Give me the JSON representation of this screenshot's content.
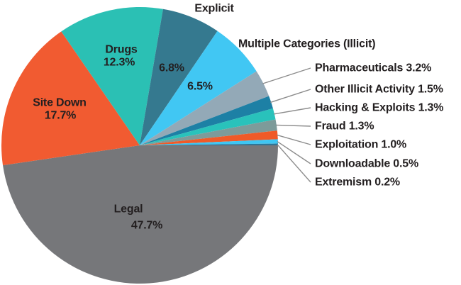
{
  "chart_data": {
    "type": "pie",
    "title": "",
    "start_angle_deg": 90,
    "direction": "clockwise",
    "background": "#ffffff",
    "text_color": "#231f20",
    "leader_line_color": "#8c8c8c",
    "legend_position": "none",
    "slices": [
      {
        "name": "Legal",
        "value": 47.7,
        "display": "47.7%",
        "color": "#76777a",
        "label_mode": "inside",
        "lines": [
          "Legal",
          "47.7%"
        ]
      },
      {
        "name": "Site Down",
        "value": 17.7,
        "display": "17.7%",
        "color": "#f15b31",
        "label_mode": "inside",
        "lines": [
          "Site Down",
          "17.7%"
        ]
      },
      {
        "name": "Drugs",
        "value": 12.3,
        "display": "12.3%",
        "color": "#2bc0b4",
        "label_mode": "inside",
        "lines": [
          "Drugs",
          "12.3%"
        ]
      },
      {
        "name": "Explicit",
        "value": 6.8,
        "display": "6.8%",
        "color": "#35798f",
        "label_mode": "inside-value-outside-title",
        "inside_value": "6.8%",
        "title": "Explicit"
      },
      {
        "name": "Multiple Categories (Illicit)",
        "value": 6.5,
        "display": "6.5%",
        "color": "#41c7f3",
        "label_mode": "inside-value-outside-title",
        "inside_value": "6.5%",
        "title": "Multiple Categories (Illicit)"
      },
      {
        "name": "Pharmaceuticals",
        "value": 3.2,
        "display": "3.2%",
        "color": "#93a9b7",
        "label_mode": "callout",
        "callout_text": "Pharmaceuticals 3.2%"
      },
      {
        "name": "Other Illicit Activity",
        "value": 1.5,
        "display": "1.5%",
        "color": "#1d80a5",
        "label_mode": "callout",
        "callout_text": "Other Illicit Activity 1.5%"
      },
      {
        "name": "Hacking & Exploits",
        "value": 1.3,
        "display": "1.3%",
        "color": "#29c2bb",
        "label_mode": "callout",
        "callout_text": "Hacking & Exploits 1.3%"
      },
      {
        "name": "Fraud",
        "value": 1.3,
        "display": "1.3%",
        "color": "#7d9b9a",
        "label_mode": "callout",
        "callout_text": "Fraud 1.3%"
      },
      {
        "name": "Exploitation",
        "value": 1.0,
        "display": "1.0%",
        "color": "#f05a28",
        "label_mode": "callout",
        "callout_text": "Exploitation 1.0%"
      },
      {
        "name": "Downloadable",
        "value": 0.5,
        "display": "0.5%",
        "color": "#3ec6f3",
        "label_mode": "callout",
        "callout_text": "Downloadable 0.5%"
      },
      {
        "name": "Extremism",
        "value": 0.2,
        "display": "0.2%",
        "color": "#2e7596",
        "label_mode": "callout",
        "callout_text": "Extremism 0.2%"
      }
    ]
  }
}
